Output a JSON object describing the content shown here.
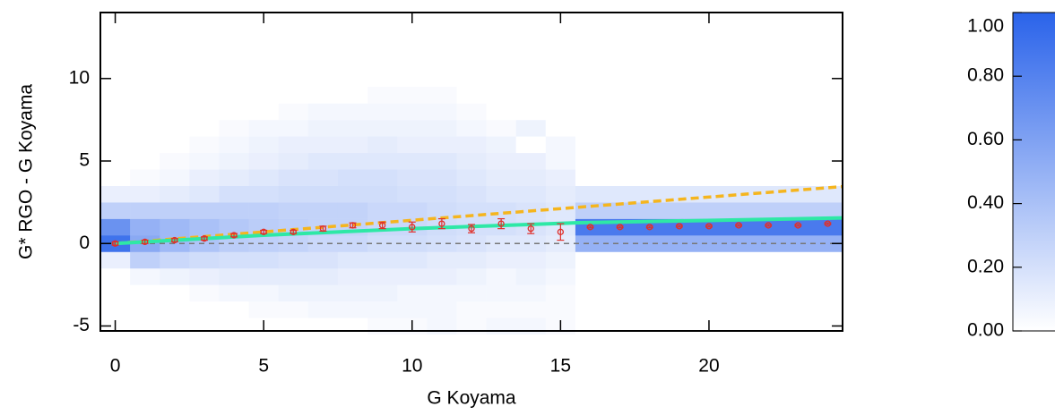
{
  "chart_data": {
    "type": "heatmap",
    "xlabel": "G Koyama",
    "ylabel": "G* RGO - G Koyama",
    "xlim": [
      -0.5,
      24.5
    ],
    "ylim": [
      -5.3,
      14
    ],
    "xticks": [
      0,
      5,
      10,
      15,
      20
    ],
    "yticks": [
      -5,
      0,
      5,
      10
    ],
    "heatmap": {
      "colormap": [
        "#ffffff",
        "#2a63ea"
      ],
      "xedges": [
        -0.5,
        0.5,
        1.5,
        2.5,
        3.5,
        4.5,
        5.5,
        6.5,
        7.5,
        8.5,
        9.5,
        10.5,
        11.5,
        12.5,
        13.5,
        14.5,
        15.5,
        24.5
      ],
      "yedges": [
        -5.5,
        -4.5,
        -3.5,
        -2.5,
        -1.5,
        -0.5,
        0.5,
        1.5,
        2.5,
        3.5,
        4.5,
        5.5,
        6.5,
        7.5,
        8.5,
        9.5
      ],
      "z": [
        [
          0,
          0,
          0,
          0,
          0,
          0,
          0,
          0,
          0,
          0.03,
          0.03,
          0.05,
          0.03,
          0.05,
          0.05,
          0.03,
          0
        ],
        [
          0,
          0,
          0,
          0,
          0,
          0.03,
          0.03,
          0.05,
          0.05,
          0.05,
          0.05,
          0.05,
          0.03,
          0.03,
          0.03,
          0.03,
          0
        ],
        [
          0,
          0,
          0,
          0.03,
          0.05,
          0.05,
          0.08,
          0.08,
          0.08,
          0.08,
          0.05,
          0.05,
          0.05,
          0.05,
          0.05,
          0.03,
          0
        ],
        [
          0,
          0.05,
          0.08,
          0.1,
          0.12,
          0.12,
          0.12,
          0.12,
          0.1,
          0.1,
          0.1,
          0.1,
          0.08,
          0.05,
          0.08,
          0.05,
          0
        ],
        [
          0.1,
          0.3,
          0.25,
          0.22,
          0.2,
          0.2,
          0.18,
          0.18,
          0.15,
          0.15,
          0.15,
          0.12,
          0.12,
          0.1,
          0.1,
          0.08,
          0
        ],
        [
          0.9,
          0.55,
          0.45,
          0.38,
          0.32,
          0.3,
          0.28,
          0.25,
          0.25,
          0.22,
          0.22,
          0.2,
          0.18,
          0.15,
          0.15,
          0.12,
          0.5
        ],
        [
          0.7,
          0.5,
          0.45,
          0.4,
          0.35,
          0.32,
          0.3,
          0.28,
          0.28,
          0.25,
          0.25,
          0.22,
          0.2,
          0.2,
          0.18,
          0.15,
          0.85
        ],
        [
          0.3,
          0.3,
          0.3,
          0.3,
          0.3,
          0.3,
          0.28,
          0.28,
          0.28,
          0.25,
          0.25,
          0.22,
          0.2,
          0.2,
          0.18,
          0.15,
          0.3
        ],
        [
          0.1,
          0.1,
          0.12,
          0.15,
          0.2,
          0.2,
          0.22,
          0.22,
          0.22,
          0.22,
          0.2,
          0.2,
          0.18,
          0.15,
          0.15,
          0.12,
          0.15
        ],
        [
          0,
          0.03,
          0.05,
          0.1,
          0.12,
          0.15,
          0.18,
          0.18,
          0.2,
          0.2,
          0.18,
          0.18,
          0.15,
          0.12,
          0.12,
          0.1,
          0
        ],
        [
          0,
          0,
          0.03,
          0.05,
          0.08,
          0.1,
          0.12,
          0.15,
          0.15,
          0.15,
          0.15,
          0.15,
          0.12,
          0.1,
          0.1,
          0.05,
          0
        ],
        [
          0,
          0,
          0,
          0.03,
          0.05,
          0.08,
          0.1,
          0.1,
          0.1,
          0.12,
          0.1,
          0.1,
          0.1,
          0.08,
          0,
          0.05,
          0
        ],
        [
          0,
          0,
          0,
          0,
          0.03,
          0.05,
          0.05,
          0.08,
          0.08,
          0.08,
          0.08,
          0.08,
          0.05,
          0.03,
          0.08,
          0,
          0
        ],
        [
          0,
          0,
          0,
          0,
          0,
          0,
          0.03,
          0.05,
          0.05,
          0.05,
          0.05,
          0.05,
          0.03,
          0,
          0,
          0,
          0
        ],
        [
          0,
          0,
          0,
          0,
          0,
          0,
          0,
          0,
          0,
          0.03,
          0.03,
          0.03,
          0,
          0,
          0,
          0,
          0
        ]
      ]
    },
    "points": {
      "color": "#e0302a",
      "x": [
        0,
        1,
        2,
        3,
        4,
        5,
        6,
        7,
        8,
        9,
        10,
        11,
        12,
        13,
        14,
        15,
        16,
        17,
        18,
        19,
        20,
        21,
        22,
        23,
        24
      ],
      "values": [
        0,
        0.1,
        0.2,
        0.3,
        0.5,
        0.7,
        0.7,
        0.9,
        1.1,
        1.1,
        1.0,
        1.2,
        0.9,
        1.2,
        0.9,
        0.7,
        1.0,
        1.0,
        1.0,
        1.05,
        1.05,
        1.1,
        1.1,
        1.1,
        1.2
      ],
      "errors": [
        0.1,
        0.1,
        0.1,
        0.1,
        0.1,
        0.1,
        0.1,
        0.15,
        0.15,
        0.2,
        0.3,
        0.3,
        0.25,
        0.3,
        0.3,
        0.5,
        0.05,
        0.05,
        0.05,
        0.05,
        0.05,
        0.05,
        0.05,
        0.05,
        0.05
      ]
    },
    "lines": [
      {
        "x": [
          -0.5,
          24.5
        ],
        "values": [
          0,
          0
        ],
        "color": "#777777",
        "width": 1.5,
        "dash": "6,5"
      },
      {
        "x": [
          0,
          24.5
        ],
        "values": [
          0,
          3.45
        ],
        "color": "#f5b51e",
        "width": 3.5,
        "dash": "9,5"
      },
      {
        "x": [
          0,
          5,
          10,
          15.5,
          24.5
        ],
        "values": [
          0,
          0.5,
          0.9,
          1.25,
          1.55
        ],
        "color": "#2ee8a6",
        "width": 4,
        "dash": "none"
      }
    ],
    "colorbar": {
      "lim": [
        0,
        1
      ],
      "ticks": [
        {
          "value": 0,
          "label": "0.00"
        },
        {
          "value": 0.2,
          "label": "0.20"
        },
        {
          "value": 0.4,
          "label": "0.40"
        },
        {
          "value": 0.6,
          "label": "0.60"
        },
        {
          "value": 0.8,
          "label": "0.80"
        },
        {
          "value": 1,
          "label": "1.00"
        }
      ]
    }
  }
}
